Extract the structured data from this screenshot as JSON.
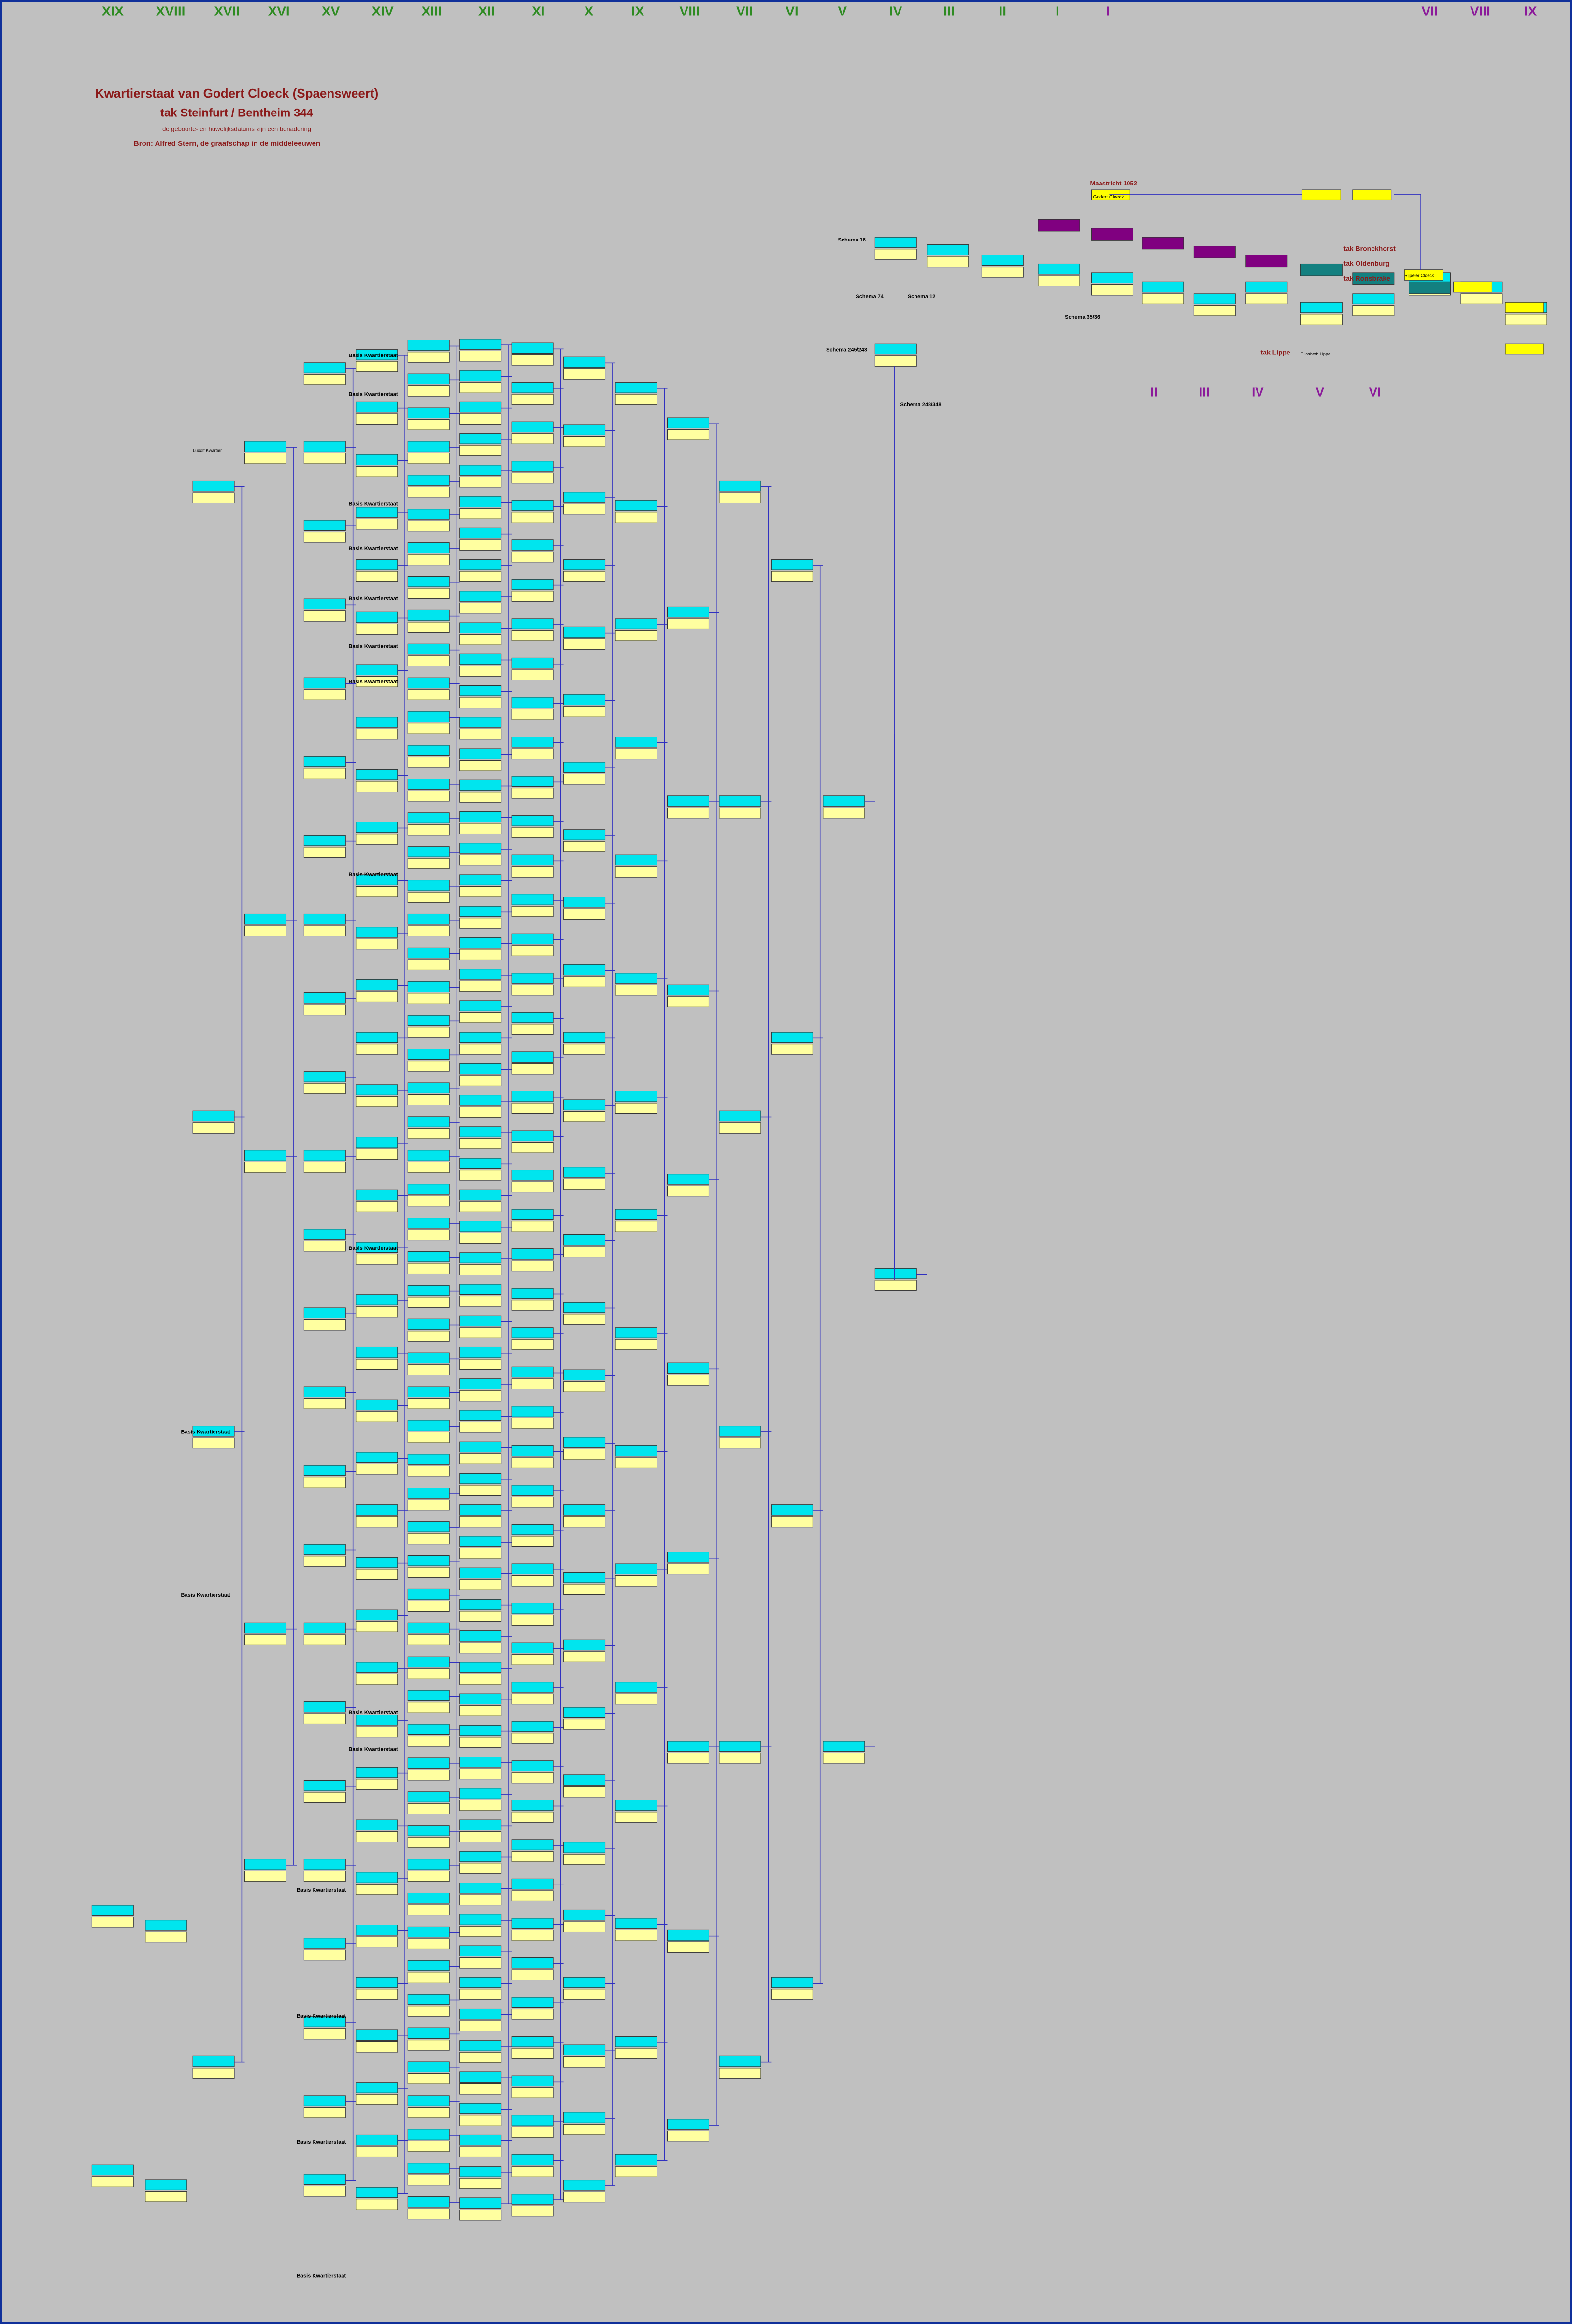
{
  "header": {
    "generations": [
      "XIX",
      "XVIII",
      "XVII",
      "XVI",
      "XV",
      "XIV",
      "XIII",
      "XII",
      "XI",
      "X",
      "IX",
      "VIII",
      "VII",
      "VI",
      "V",
      "IV",
      "III",
      "II",
      "I"
    ],
    "generation_start": "I",
    "generations_right": [
      "VII",
      "VIII",
      "IX"
    ],
    "generations_lower": [
      "II",
      "III",
      "IV",
      "V",
      "VI"
    ]
  },
  "title": {
    "line1": "Kwartierstaat van Godert Cloeck (Spaensweert)",
    "line2": "tak Steinfurt / Bentheim 344",
    "note": "de geboorte- en huwelijksdatums zijn een benadering",
    "source": "Bron:  Alfred Stern, de graafschap in de middeleeuwen"
  },
  "labels": {
    "place": "Maastricht 1052",
    "basis": "Basis Kwartierstaat",
    "branches": [
      "tak Bronckhorst",
      "tak Oldenburg",
      "tak Ronsbrake",
      "tak Lippe"
    ],
    "schemas": [
      "Schema 16",
      "Schema 74",
      "Schema 12",
      "Schema 35/36",
      "Schema 245/243",
      "Schema 248/348"
    ]
  },
  "nodes": {
    "root": "Godert Cloeck",
    "left_root": "Ludolf Kwartier",
    "right_top": "Rijpeter Cloeck",
    "lippe": "Elisabeth Lippe"
  }
}
